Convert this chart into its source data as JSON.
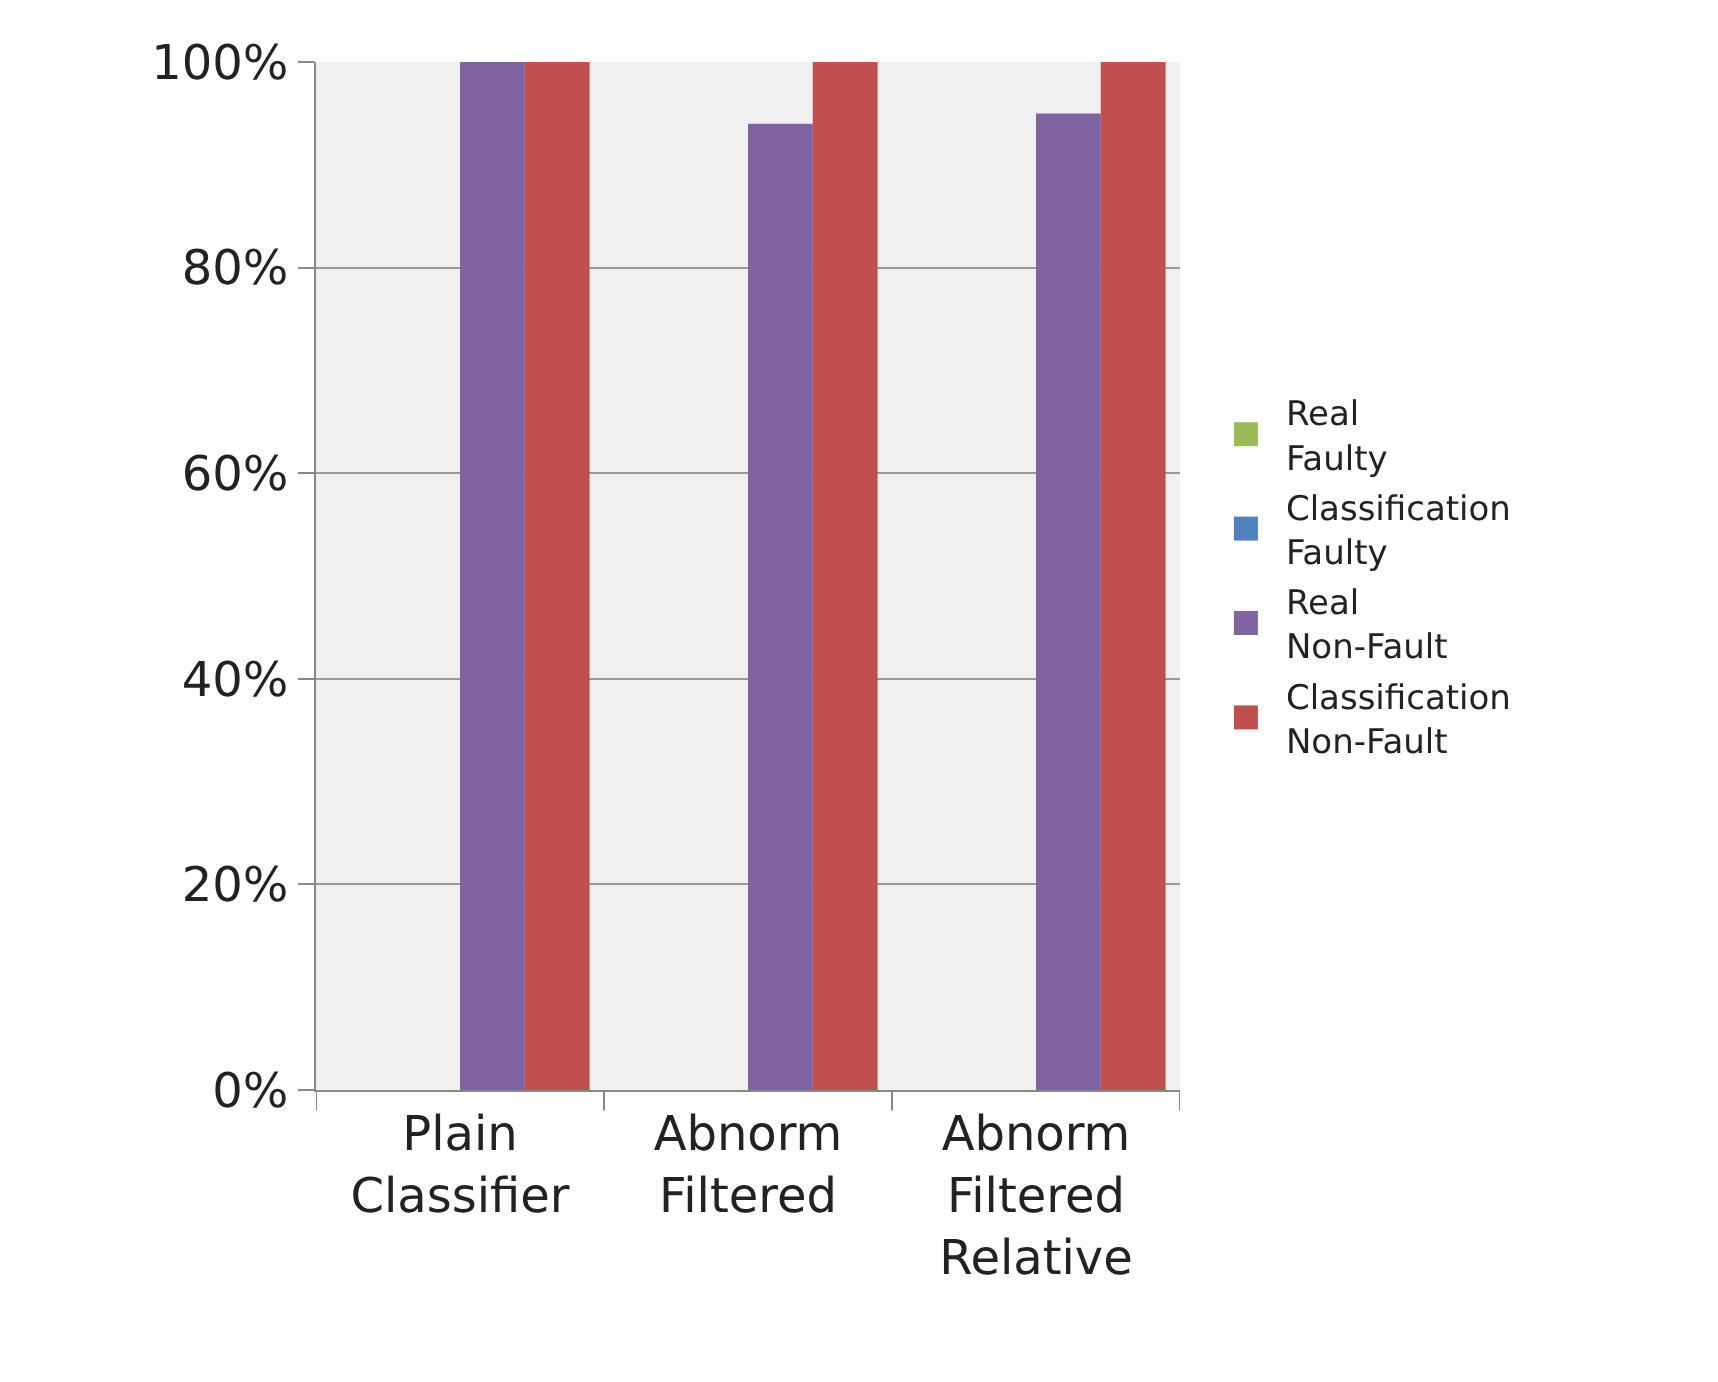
{
  "chart_data": {
    "type": "bar",
    "categories": [
      "Plain Classifier",
      "Abnorm Filtered",
      "Abnorm Filtered Relative"
    ],
    "series": [
      {
        "name": "Real Faulty",
        "color": "#9bbb59",
        "values": [
          null,
          null,
          null
        ]
      },
      {
        "name": "Classification Faulty",
        "color": "#4f81bd",
        "values": [
          null,
          null,
          null
        ]
      },
      {
        "name": "Real Non-Fault",
        "color": "#8064a2",
        "values": [
          100,
          94,
          95
        ]
      },
      {
        "name": "Classification Non-Fault",
        "color": "#c0504d",
        "values": [
          100,
          100,
          100
        ]
      }
    ],
    "ylim": [
      0,
      100
    ],
    "yticks": [
      {
        "value": 0,
        "label": "0%"
      },
      {
        "value": 20,
        "label": "20%"
      },
      {
        "value": 40,
        "label": "40%"
      },
      {
        "value": 60,
        "label": "60%"
      },
      {
        "value": 80,
        "label": "80%"
      },
      {
        "value": 100,
        "label": "100%"
      }
    ],
    "grid": "y",
    "legend": "right"
  }
}
